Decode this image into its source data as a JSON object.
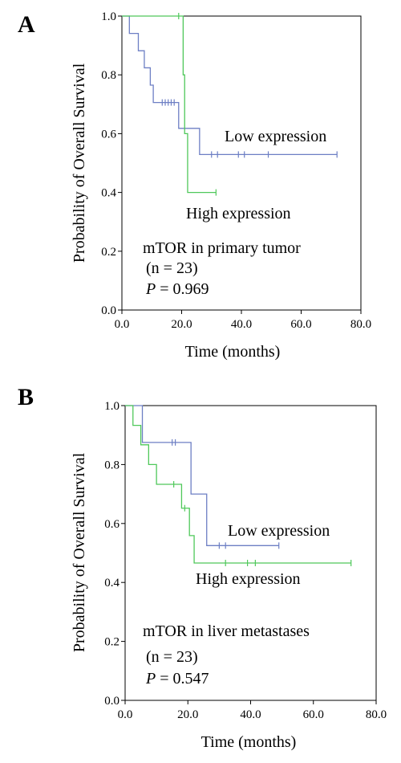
{
  "chart_data": [
    {
      "panel": "A",
      "type": "line",
      "step": true,
      "xlabel": "Time (months)",
      "ylabel": "Probability of Overall Survival",
      "xlim": [
        0,
        80
      ],
      "ylim": [
        0,
        1
      ],
      "xticks": [
        "0.0",
        "20.0",
        "40.0",
        "60.0",
        "80.0"
      ],
      "yticks": [
        "0.0",
        "0.2",
        "0.4",
        "0.6",
        "0.8",
        "1.0"
      ],
      "series": [
        {
          "name": "Low expression",
          "color": "#6d7fc4",
          "steps": [
            [
              0,
              1.0
            ],
            [
              2.5,
              0.941
            ],
            [
              5.5,
              0.882
            ],
            [
              7.5,
              0.824
            ],
            [
              9.5,
              0.765
            ],
            [
              10.5,
              0.706
            ],
            [
              19,
              0.618
            ],
            [
              26,
              0.529
            ],
            [
              72,
              0.529
            ]
          ],
          "censors": [
            [
              13.5,
              0.706
            ],
            [
              14.5,
              0.706
            ],
            [
              15.5,
              0.706
            ],
            [
              16.5,
              0.706
            ],
            [
              17.5,
              0.706
            ],
            [
              30,
              0.529
            ],
            [
              32,
              0.529
            ],
            [
              39,
              0.529
            ],
            [
              41,
              0.529
            ],
            [
              49,
              0.529
            ],
            [
              72,
              0.529
            ]
          ]
        },
        {
          "name": "High expression",
          "color": "#4fc85a",
          "steps": [
            [
              0,
              1.0
            ],
            [
              20.5,
              0.8
            ],
            [
              21.0,
              0.6
            ],
            [
              22.0,
              0.4
            ],
            [
              31.5,
              0.4
            ]
          ],
          "censors": [
            [
              19.0,
              1.0
            ],
            [
              31.5,
              0.4
            ]
          ]
        }
      ],
      "annotations": {
        "low_label": "Low expression",
        "high_label": "High expression",
        "test_line1": "mTOR in primary tumor",
        "test_line2": "(n = 23)",
        "p_symbol": "P",
        "p_value": " = 0.969"
      }
    },
    {
      "panel": "B",
      "type": "line",
      "step": true,
      "xlabel": "Time (months)",
      "ylabel": "Probability of Overall Survival",
      "xlim": [
        0,
        80
      ],
      "ylim": [
        0,
        1
      ],
      "xticks": [
        "0.0",
        "20.0",
        "40.0",
        "60.0",
        "80.0"
      ],
      "yticks": [
        "0.0",
        "0.2",
        "0.4",
        "0.6",
        "0.8",
        "1.0"
      ],
      "series": [
        {
          "name": "Low expression",
          "color": "#6d7fc4",
          "steps": [
            [
              0,
              1.0
            ],
            [
              5.5,
              0.875
            ],
            [
              21.0,
              0.7
            ],
            [
              26.0,
              0.525
            ],
            [
              49,
              0.525
            ]
          ],
          "censors": [
            [
              15.0,
              0.875
            ],
            [
              16.0,
              0.875
            ],
            [
              30.0,
              0.525
            ],
            [
              32.0,
              0.525
            ],
            [
              49.0,
              0.525
            ]
          ]
        },
        {
          "name": "High expression",
          "color": "#4fc85a",
          "steps": [
            [
              0,
              1.0
            ],
            [
              2.5,
              0.933
            ],
            [
              5.0,
              0.867
            ],
            [
              7.5,
              0.8
            ],
            [
              10.0,
              0.733
            ],
            [
              18.0,
              0.652
            ],
            [
              20.5,
              0.559
            ],
            [
              22.0,
              0.466
            ],
            [
              72,
              0.466
            ]
          ],
          "censors": [
            [
              15.5,
              0.733
            ],
            [
              19.0,
              0.652
            ],
            [
              32.0,
              0.466
            ],
            [
              39.0,
              0.466
            ],
            [
              41.5,
              0.466
            ],
            [
              72.0,
              0.466
            ]
          ]
        }
      ],
      "annotations": {
        "low_label": "Low expression",
        "high_label": "High expression",
        "test_line1": "mTOR in liver metastases",
        "test_line2": "(n = 23)",
        "p_symbol": "P",
        "p_value": " = 0.547"
      }
    }
  ]
}
